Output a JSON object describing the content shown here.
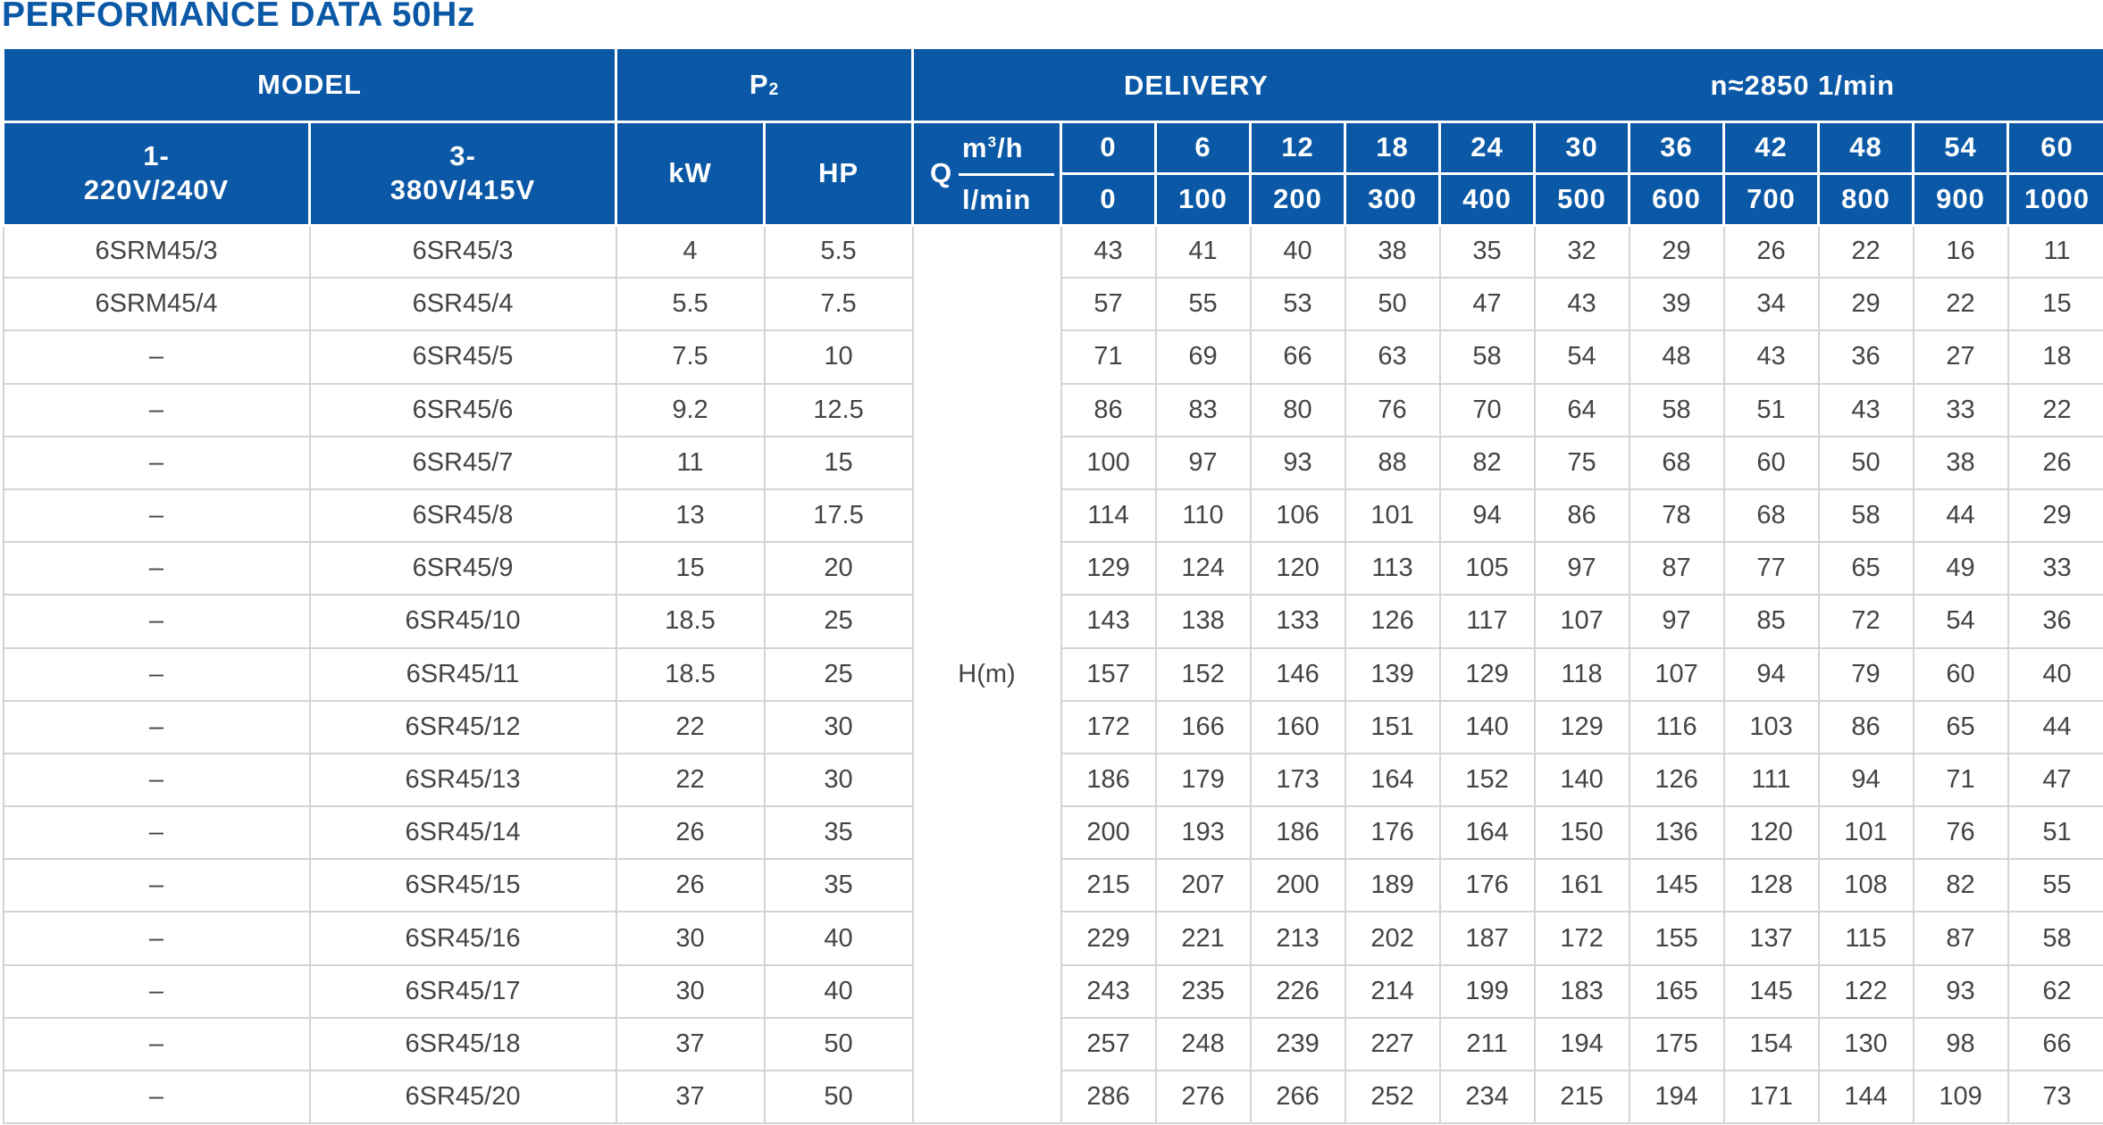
{
  "title": "PERFORMANCE DATA 50Hz",
  "header": {
    "model": "MODEL",
    "p2": "P",
    "p2_sub": "2",
    "delivery": "DELIVERY",
    "speed": "n≈2850  1/min",
    "single_phase_a": "1-",
    "single_phase_b": "220V/240V",
    "three_phase_a": "3-",
    "three_phase_b": "380V/415V",
    "kw": "kW",
    "hp": "HP",
    "q": "Q",
    "q_unit_m3h_base": "m",
    "q_unit_m3h_sup": "3",
    "q_unit_m3h_tail": "/h",
    "q_unit_lmin": "l/min",
    "head_label": "H(m)"
  },
  "flow_m3h": [
    "0",
    "6",
    "12",
    "18",
    "24",
    "30",
    "36",
    "42",
    "48",
    "54",
    "60"
  ],
  "flow_lmin": [
    "0",
    "100",
    "200",
    "300",
    "400",
    "500",
    "600",
    "700",
    "800",
    "900",
    "1000"
  ],
  "rows": [
    {
      "single": "6SRM45/3",
      "three": "6SR45/3",
      "kw": "4",
      "hp": "5.5",
      "h": [
        "43",
        "41",
        "40",
        "38",
        "35",
        "32",
        "29",
        "26",
        "22",
        "16",
        "11"
      ]
    },
    {
      "single": "6SRM45/4",
      "three": "6SR45/4",
      "kw": "5.5",
      "hp": "7.5",
      "h": [
        "57",
        "55",
        "53",
        "50",
        "47",
        "43",
        "39",
        "34",
        "29",
        "22",
        "15"
      ]
    },
    {
      "single": "–",
      "three": "6SR45/5",
      "kw": "7.5",
      "hp": "10",
      "h": [
        "71",
        "69",
        "66",
        "63",
        "58",
        "54",
        "48",
        "43",
        "36",
        "27",
        "18"
      ]
    },
    {
      "single": "–",
      "three": "6SR45/6",
      "kw": "9.2",
      "hp": "12.5",
      "h": [
        "86",
        "83",
        "80",
        "76",
        "70",
        "64",
        "58",
        "51",
        "43",
        "33",
        "22"
      ]
    },
    {
      "single": "–",
      "three": "6SR45/7",
      "kw": "11",
      "hp": "15",
      "h": [
        "100",
        "97",
        "93",
        "88",
        "82",
        "75",
        "68",
        "60",
        "50",
        "38",
        "26"
      ]
    },
    {
      "single": "–",
      "three": "6SR45/8",
      "kw": "13",
      "hp": "17.5",
      "h": [
        "114",
        "110",
        "106",
        "101",
        "94",
        "86",
        "78",
        "68",
        "58",
        "44",
        "29"
      ]
    },
    {
      "single": "–",
      "three": "6SR45/9",
      "kw": "15",
      "hp": "20",
      "h": [
        "129",
        "124",
        "120",
        "113",
        "105",
        "97",
        "87",
        "77",
        "65",
        "49",
        "33"
      ]
    },
    {
      "single": "–",
      "three": "6SR45/10",
      "kw": "18.5",
      "hp": "25",
      "h": [
        "143",
        "138",
        "133",
        "126",
        "117",
        "107",
        "97",
        "85",
        "72",
        "54",
        "36"
      ]
    },
    {
      "single": "–",
      "three": "6SR45/11",
      "kw": "18.5",
      "hp": "25",
      "h": [
        "157",
        "152",
        "146",
        "139",
        "129",
        "118",
        "107",
        "94",
        "79",
        "60",
        "40"
      ]
    },
    {
      "single": "–",
      "three": "6SR45/12",
      "kw": "22",
      "hp": "30",
      "h": [
        "172",
        "166",
        "160",
        "151",
        "140",
        "129",
        "116",
        "103",
        "86",
        "65",
        "44"
      ]
    },
    {
      "single": "–",
      "three": "6SR45/13",
      "kw": "22",
      "hp": "30",
      "h": [
        "186",
        "179",
        "173",
        "164",
        "152",
        "140",
        "126",
        "111",
        "94",
        "71",
        "47"
      ]
    },
    {
      "single": "–",
      "three": "6SR45/14",
      "kw": "26",
      "hp": "35",
      "h": [
        "200",
        "193",
        "186",
        "176",
        "164",
        "150",
        "136",
        "120",
        "101",
        "76",
        "51"
      ]
    },
    {
      "single": "–",
      "three": "6SR45/15",
      "kw": "26",
      "hp": "35",
      "h": [
        "215",
        "207",
        "200",
        "189",
        "176",
        "161",
        "145",
        "128",
        "108",
        "82",
        "55"
      ]
    },
    {
      "single": "–",
      "three": "6SR45/16",
      "kw": "30",
      "hp": "40",
      "h": [
        "229",
        "221",
        "213",
        "202",
        "187",
        "172",
        "155",
        "137",
        "115",
        "87",
        "58"
      ]
    },
    {
      "single": "–",
      "three": "6SR45/17",
      "kw": "30",
      "hp": "40",
      "h": [
        "243",
        "235",
        "226",
        "214",
        "199",
        "183",
        "165",
        "145",
        "122",
        "93",
        "62"
      ]
    },
    {
      "single": "–",
      "three": "6SR45/18",
      "kw": "37",
      "hp": "50",
      "h": [
        "257",
        "248",
        "239",
        "227",
        "211",
        "194",
        "175",
        "154",
        "130",
        "98",
        "66"
      ]
    },
    {
      "single": "–",
      "three": "6SR45/20",
      "kw": "37",
      "hp": "50",
      "h": [
        "286",
        "276",
        "266",
        "252",
        "234",
        "215",
        "194",
        "171",
        "144",
        "109",
        "73"
      ]
    }
  ]
}
